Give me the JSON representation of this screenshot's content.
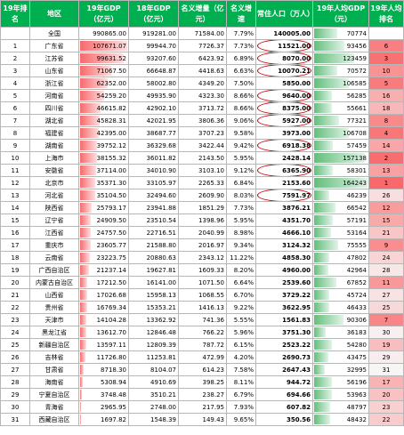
{
  "headers": {
    "rank": "19年排名",
    "region": "地区",
    "gdp19": "19年GDP（亿元）",
    "gdp18": "18年GDP（亿元）",
    "incr": "名义增量（亿元）",
    "speed": "名义增速",
    "pop": "常住人口（万人）",
    "percap": "19年人均GDP（元）",
    "pcrank": "19年人均排名"
  },
  "colors": {
    "header_bg": "#00b050",
    "gdp_bar": "#f8696b",
    "percap_bar": "#63be7b",
    "circle": "#c00000"
  },
  "ranges": {
    "gdp_max": 107671.07,
    "percap_max": 164243
  },
  "rows": [
    {
      "rank": "",
      "region": "全国",
      "gdp19": "990865.00",
      "gdp18": "919281.00",
      "incr": "71584.00",
      "speed": "7.79%",
      "pop": "140005.00",
      "percap": "70774",
      "pcrank": "",
      "gdp_v": 0,
      "pc_v": 70774,
      "circled": false
    },
    {
      "rank": "1",
      "region": "广东省",
      "gdp19": "107671.07",
      "gdp18": "99944.70",
      "incr": "7726.37",
      "speed": "7.73%",
      "pop": "11521.00",
      "percap": "93456",
      "pcrank": "6",
      "gdp_v": 107671.07,
      "pc_v": 93456,
      "circled": true
    },
    {
      "rank": "2",
      "region": "江苏省",
      "gdp19": "99631.52",
      "gdp18": "93207.60",
      "incr": "6423.92",
      "speed": "6.89%",
      "pop": "8070.00",
      "percap": "123459",
      "pcrank": "3",
      "gdp_v": 99631.52,
      "pc_v": 123459,
      "circled": true
    },
    {
      "rank": "3",
      "region": "山东省",
      "gdp19": "71067.50",
      "gdp18": "66648.87",
      "incr": "4418.63",
      "speed": "6.63%",
      "pop": "10070.21",
      "percap": "70572",
      "pcrank": "10",
      "gdp_v": 71067.5,
      "pc_v": 70572,
      "circled": true
    },
    {
      "rank": "4",
      "region": "浙江省",
      "gdp19": "62352.00",
      "gdp18": "58002.80",
      "incr": "4349.20",
      "speed": "7.50%",
      "pop": "5850.00",
      "percap": "106585",
      "pcrank": "5",
      "gdp_v": 62352.0,
      "pc_v": 106585,
      "circled": false
    },
    {
      "rank": "5",
      "region": "河南省",
      "gdp19": "54259.20",
      "gdp18": "49935.90",
      "incr": "4323.30",
      "speed": "8.66%",
      "pop": "9640.00",
      "percap": "56285",
      "pcrank": "16",
      "gdp_v": 54259.2,
      "pc_v": 56285,
      "circled": true
    },
    {
      "rank": "6",
      "region": "四川省",
      "gdp19": "46615.82",
      "gdp18": "42902.10",
      "incr": "3713.72",
      "speed": "8.66%",
      "pop": "8375.00",
      "percap": "55661",
      "pcrank": "18",
      "gdp_v": 46615.82,
      "pc_v": 55661,
      "circled": true
    },
    {
      "rank": "7",
      "region": "湖北省",
      "gdp19": "45828.31",
      "gdp18": "42021.95",
      "incr": "3806.36",
      "speed": "9.06%",
      "pop": "5927.00",
      "percap": "77321",
      "pcrank": "8",
      "gdp_v": 45828.31,
      "pc_v": 77321,
      "circled": true
    },
    {
      "rank": "8",
      "region": "福建省",
      "gdp19": "42395.00",
      "gdp18": "38687.77",
      "incr": "3707.23",
      "speed": "9.58%",
      "pop": "3973.00",
      "percap": "106708",
      "pcrank": "4",
      "gdp_v": 42395.0,
      "pc_v": 106708,
      "circled": false
    },
    {
      "rank": "9",
      "region": "湖南省",
      "gdp19": "39752.12",
      "gdp18": "36329.68",
      "incr": "3422.44",
      "speed": "9.42%",
      "pop": "6918.38",
      "percap": "57459",
      "pcrank": "14",
      "gdp_v": 39752.12,
      "pc_v": 57459,
      "circled": true
    },
    {
      "rank": "10",
      "region": "上海市",
      "gdp19": "38155.32",
      "gdp18": "36011.82",
      "incr": "2143.50",
      "speed": "5.95%",
      "pop": "2428.14",
      "percap": "157138",
      "pcrank": "2",
      "gdp_v": 38155.32,
      "pc_v": 157138,
      "circled": false
    },
    {
      "rank": "11",
      "region": "安徽省",
      "gdp19": "37114.00",
      "gdp18": "34010.90",
      "incr": "3103.10",
      "speed": "9.12%",
      "pop": "6365.90",
      "percap": "58301",
      "pcrank": "13",
      "gdp_v": 37114.0,
      "pc_v": 58301,
      "circled": true
    },
    {
      "rank": "12",
      "region": "北京市",
      "gdp19": "35371.30",
      "gdp18": "33105.97",
      "incr": "2265.33",
      "speed": "6.84%",
      "pop": "2153.60",
      "percap": "164243",
      "pcrank": "1",
      "gdp_v": 35371.3,
      "pc_v": 164243,
      "circled": false
    },
    {
      "rank": "13",
      "region": "河北省",
      "gdp19": "35104.50",
      "gdp18": "32494.60",
      "incr": "2609.90",
      "speed": "8.03%",
      "pop": "7591.97",
      "percap": "46239",
      "pcrank": "26",
      "gdp_v": 35104.5,
      "pc_v": 46239,
      "circled": true
    },
    {
      "rank": "14",
      "region": "陕西省",
      "gdp19": "25793.17",
      "gdp18": "23941.88",
      "incr": "1851.29",
      "speed": "7.73%",
      "pop": "3876.21",
      "percap": "66542",
      "pcrank": "12",
      "gdp_v": 25793.17,
      "pc_v": 66542,
      "circled": false
    },
    {
      "rank": "15",
      "region": "辽宁省",
      "gdp19": "24909.50",
      "gdp18": "23510.54",
      "incr": "1398.96",
      "speed": "5.95%",
      "pop": "4351.70",
      "percap": "57191",
      "pcrank": "15",
      "gdp_v": 24909.5,
      "pc_v": 57191,
      "circled": false
    },
    {
      "rank": "16",
      "region": "江西省",
      "gdp19": "24757.50",
      "gdp18": "22716.51",
      "incr": "2040.99",
      "speed": "8.98%",
      "pop": "4666.10",
      "percap": "53164",
      "pcrank": "21",
      "gdp_v": 24757.5,
      "pc_v": 53164,
      "circled": false
    },
    {
      "rank": "17",
      "region": "重庆市",
      "gdp19": "23605.77",
      "gdp18": "21588.80",
      "incr": "2016.97",
      "speed": "9.34%",
      "pop": "3124.32",
      "percap": "75555",
      "pcrank": "9",
      "gdp_v": 23605.77,
      "pc_v": 75555,
      "circled": false
    },
    {
      "rank": "18",
      "region": "云南省",
      "gdp19": "23223.75",
      "gdp18": "20880.63",
      "incr": "2343.12",
      "speed": "11.22%",
      "pop": "4858.30",
      "percap": "47802",
      "pcrank": "24",
      "gdp_v": 23223.75,
      "pc_v": 47802,
      "circled": false
    },
    {
      "rank": "19",
      "region": "广西自治区",
      "gdp19": "21237.14",
      "gdp18": "19627.81",
      "incr": "1609.33",
      "speed": "8.20%",
      "pop": "4960.00",
      "percap": "42964",
      "pcrank": "28",
      "gdp_v": 21237.14,
      "pc_v": 42964,
      "circled": false
    },
    {
      "rank": "20",
      "region": "内蒙古自治区",
      "gdp19": "17212.50",
      "gdp18": "16141.00",
      "incr": "1071.50",
      "speed": "6.64%",
      "pop": "2539.60",
      "percap": "67852",
      "pcrank": "11",
      "gdp_v": 17212.5,
      "pc_v": 67852,
      "circled": false
    },
    {
      "rank": "21",
      "region": "山西省",
      "gdp19": "17026.68",
      "gdp18": "15958.13",
      "incr": "1068.55",
      "speed": "6.70%",
      "pop": "3729.22",
      "percap": "45724",
      "pcrank": "27",
      "gdp_v": 17026.68,
      "pc_v": 45724,
      "circled": false
    },
    {
      "rank": "22",
      "region": "贵州省",
      "gdp19": "16769.34",
      "gdp18": "15353.21",
      "incr": "1416.13",
      "speed": "9.22%",
      "pop": "3622.95",
      "percap": "46433",
      "pcrank": "25",
      "gdp_v": 16769.34,
      "pc_v": 46433,
      "circled": false
    },
    {
      "rank": "23",
      "region": "天津市",
      "gdp19": "14104.28",
      "gdp18": "13362.92",
      "incr": "741.36",
      "speed": "5.55%",
      "pop": "1561.83",
      "percap": "90306",
      "pcrank": "7",
      "gdp_v": 14104.28,
      "pc_v": 90306,
      "circled": false
    },
    {
      "rank": "24",
      "region": "黑龙江省",
      "gdp19": "13612.70",
      "gdp18": "12846.48",
      "incr": "766.22",
      "speed": "5.96%",
      "pop": "3751.30",
      "percap": "36183",
      "pcrank": "30",
      "gdp_v": 13612.7,
      "pc_v": 36183,
      "circled": false
    },
    {
      "rank": "25",
      "region": "新疆自治区",
      "gdp19": "13597.11",
      "gdp18": "12809.39",
      "incr": "787.72",
      "speed": "6.15%",
      "pop": "2523.22",
      "percap": "54280",
      "pcrank": "19",
      "gdp_v": 13597.11,
      "pc_v": 54280,
      "circled": false
    },
    {
      "rank": "26",
      "region": "吉林省",
      "gdp19": "11726.80",
      "gdp18": "11253.81",
      "incr": "472.99",
      "speed": "4.20%",
      "pop": "2690.73",
      "percap": "43475",
      "pcrank": "29",
      "gdp_v": 11726.8,
      "pc_v": 43475,
      "circled": false
    },
    {
      "rank": "27",
      "region": "甘肃省",
      "gdp19": "8718.30",
      "gdp18": "8104.07",
      "incr": "614.23",
      "speed": "7.58%",
      "pop": "2647.43",
      "percap": "32995",
      "pcrank": "31",
      "gdp_v": 8718.3,
      "pc_v": 32995,
      "circled": false
    },
    {
      "rank": "28",
      "region": "海南省",
      "gdp19": "5308.94",
      "gdp18": "4910.69",
      "incr": "398.25",
      "speed": "8.11%",
      "pop": "944.72",
      "percap": "56196",
      "pcrank": "17",
      "gdp_v": 5308.94,
      "pc_v": 56196,
      "circled": false
    },
    {
      "rank": "29",
      "region": "宁夏自治区",
      "gdp19": "3748.48",
      "gdp18": "3510.21",
      "incr": "238.27",
      "speed": "6.79%",
      "pop": "694.66",
      "percap": "53963",
      "pcrank": "20",
      "gdp_v": 3748.48,
      "pc_v": 53963,
      "circled": false
    },
    {
      "rank": "30",
      "region": "青海省",
      "gdp19": "2965.95",
      "gdp18": "2748.00",
      "incr": "217.95",
      "speed": "7.93%",
      "pop": "607.82",
      "percap": "48797",
      "pcrank": "23",
      "gdp_v": 2965.95,
      "pc_v": 48797,
      "circled": false
    },
    {
      "rank": "31",
      "region": "西藏自治区",
      "gdp19": "1697.82",
      "gdp18": "1548.39",
      "incr": "149.43",
      "speed": "9.65%",
      "pop": "350.56",
      "percap": "48432",
      "pcrank": "22",
      "gdp_v": 1697.82,
      "pc_v": 48432,
      "circled": false
    }
  ]
}
